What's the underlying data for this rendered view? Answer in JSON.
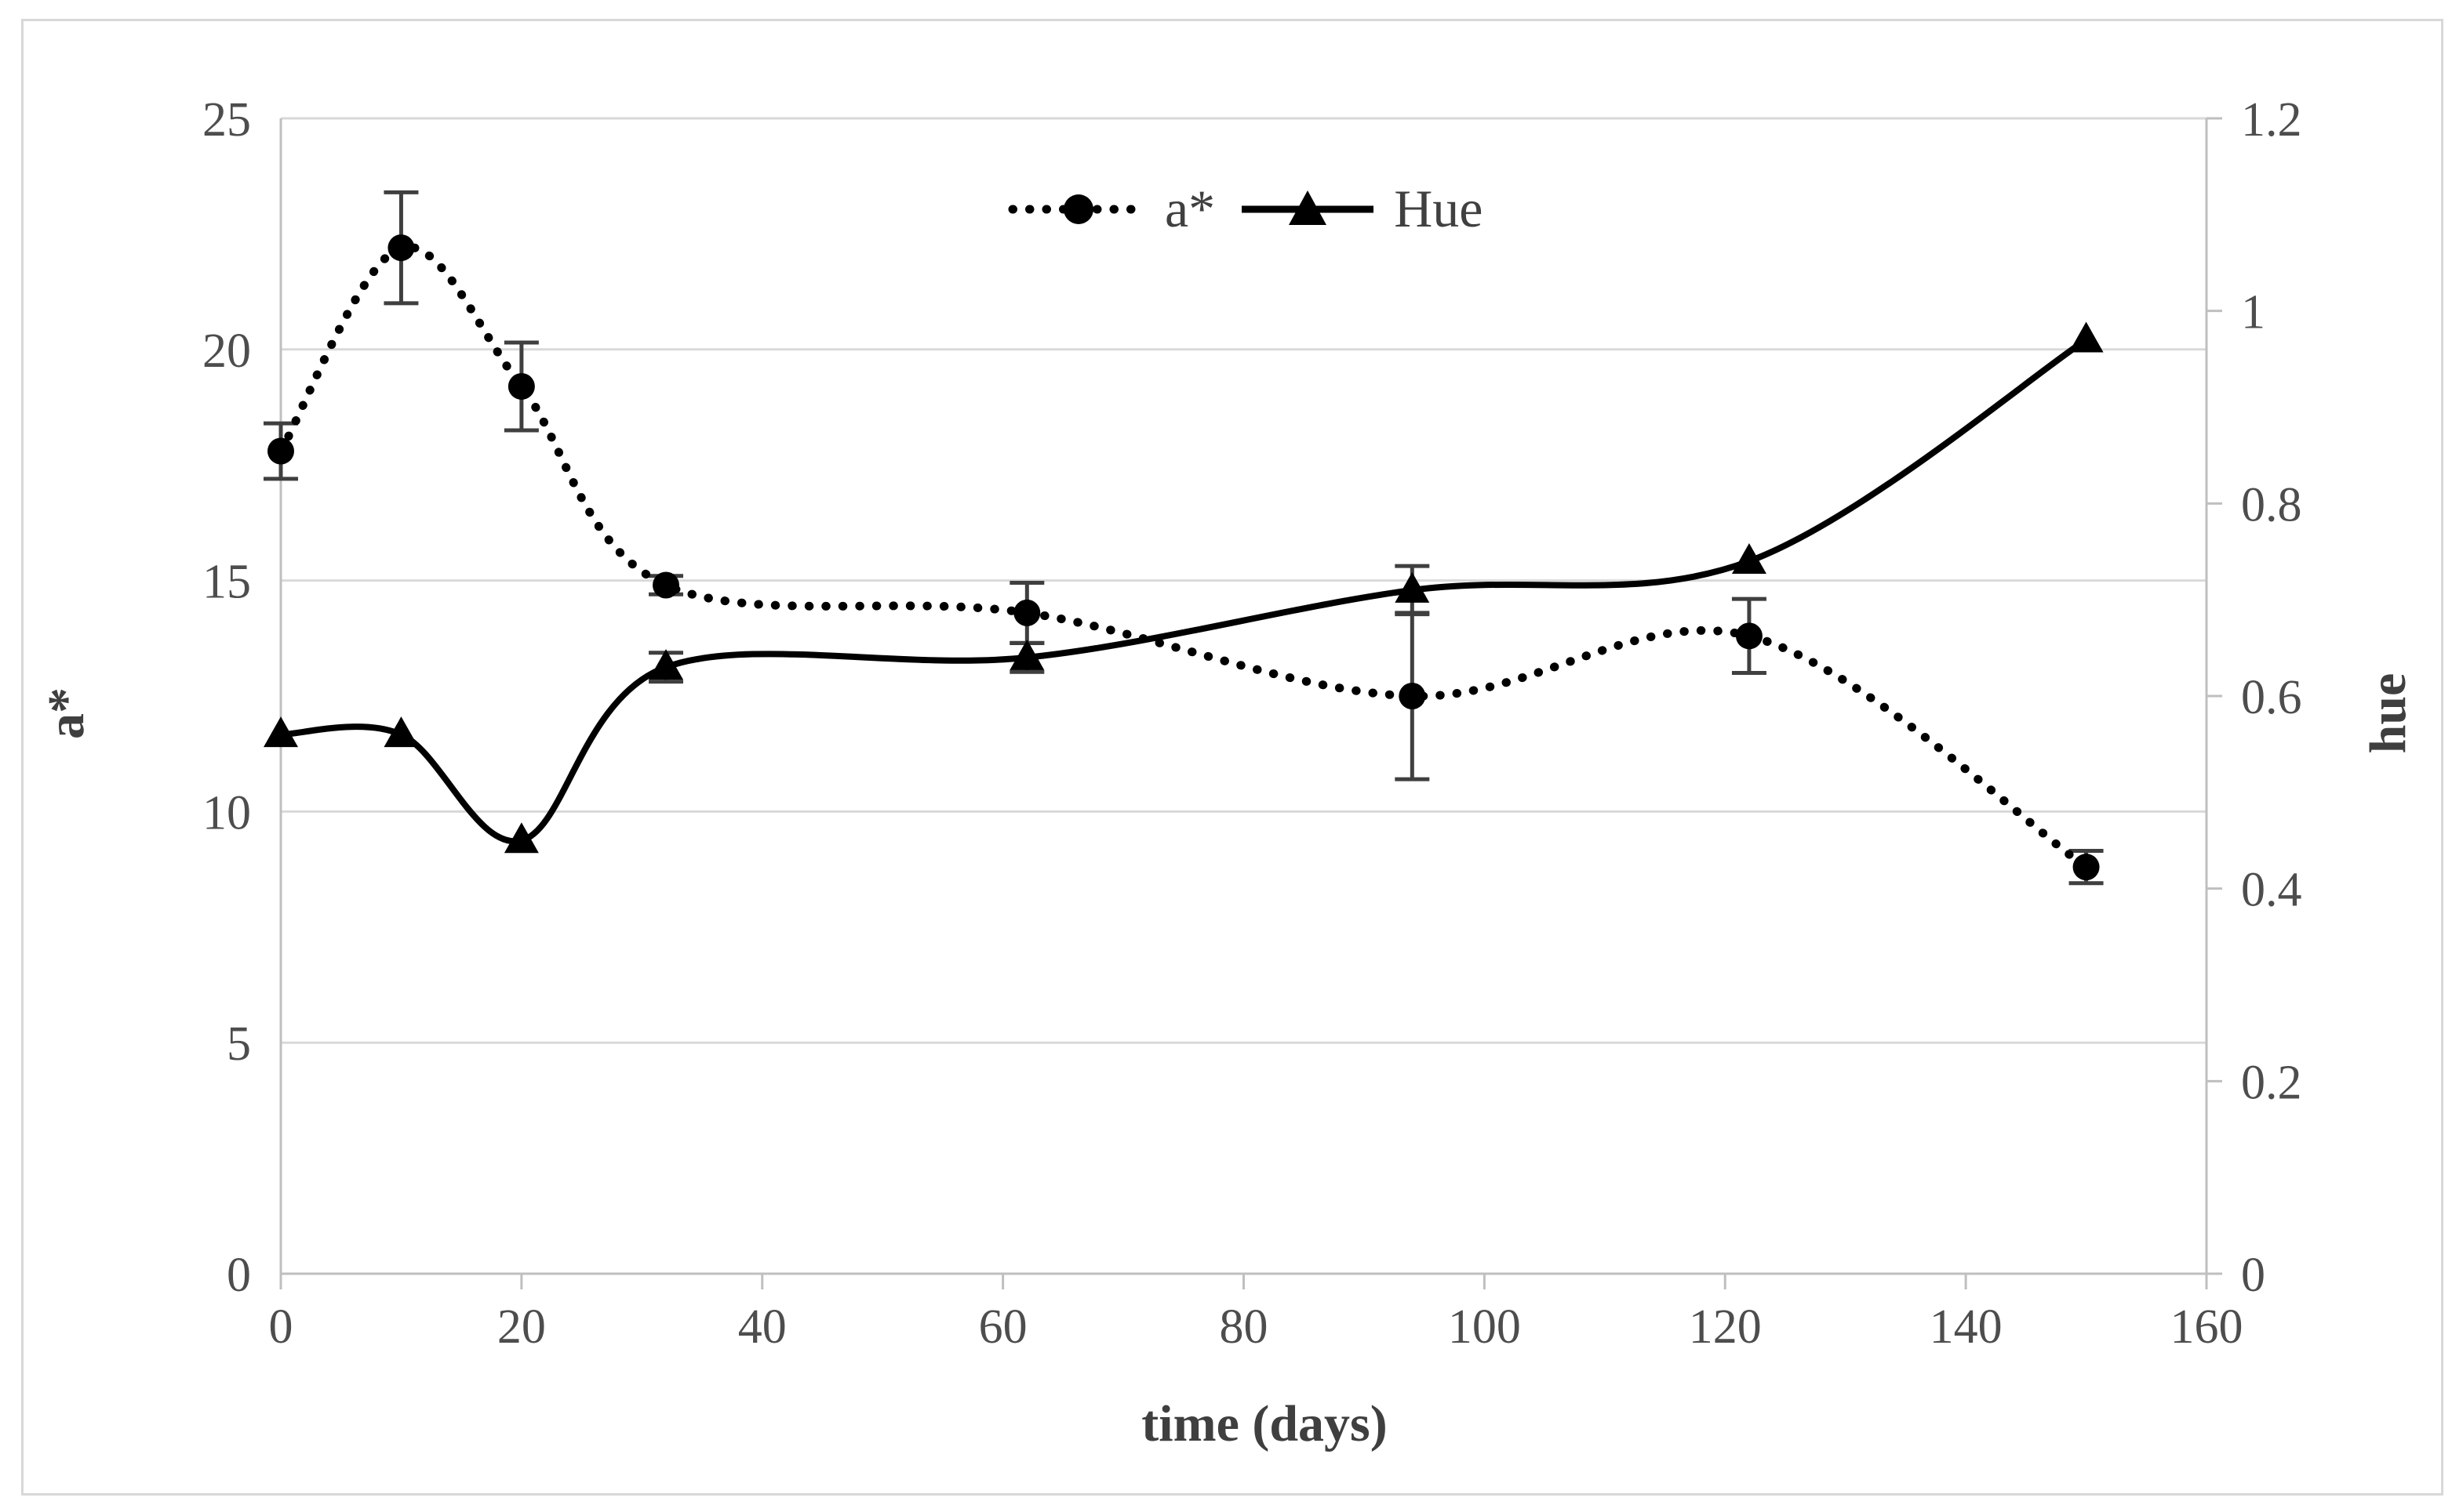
{
  "figure": {
    "background": "#ffffff",
    "border_color": "#d8d8d8"
  },
  "chart_data": {
    "type": "line",
    "x": [
      0,
      10,
      20,
      32,
      62,
      94,
      122,
      150
    ],
    "series": [
      {
        "name": "a*",
        "axis": "left",
        "style": "dotted",
        "marker": "circle",
        "values": [
          17.8,
          22.2,
          19.2,
          14.9,
          14.3,
          12.5,
          13.8,
          8.8
        ],
        "error": [
          0.6,
          1.2,
          0.95,
          0.2,
          0.65,
          1.8,
          0.8,
          0.35
        ]
      },
      {
        "name": "Hue",
        "axis": "right",
        "style": "solid",
        "marker": "triangle",
        "values": [
          0.56,
          0.56,
          0.45,
          0.63,
          0.64,
          0.71,
          0.74,
          0.97
        ],
        "error": [
          0,
          0,
          0,
          0.015,
          0.015,
          0.025,
          0,
          0
        ]
      }
    ],
    "title": "",
    "xlabel": "time (days)",
    "ylabel_left": "a*",
    "ylabel_right": "hue",
    "xlim": [
      0,
      160
    ],
    "ylim_left": [
      0,
      25
    ],
    "ylim_right": [
      0,
      1.2
    ],
    "x_ticks": [
      "0",
      "20",
      "40",
      "60",
      "80",
      "100",
      "120",
      "140",
      "160"
    ],
    "y_left_ticks": [
      "0",
      "5",
      "10",
      "15",
      "20",
      "25"
    ],
    "y_right_ticks": [
      "0",
      "0.2",
      "0.4",
      "0.6",
      "0.8",
      "1",
      "1.2"
    ],
    "grid": "horizontal",
    "legend_position": "top-center",
    "colors": {
      "series": "#000000",
      "grid": "#d9d9d9",
      "axis": "#bfbfbf",
      "tick_label": "#4d4d4d",
      "error_bar": "#3f3f3f"
    }
  }
}
